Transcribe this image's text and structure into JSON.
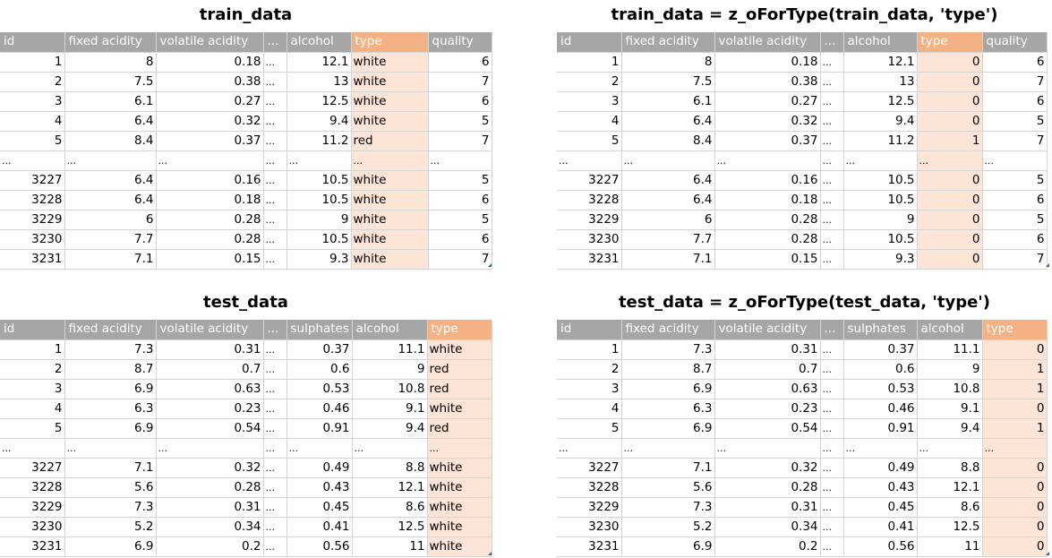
{
  "panels": [
    {
      "title": "train_data",
      "headers": [
        "id",
        "fixed acidity",
        "volatile acidity",
        "...",
        "alcohol",
        "type",
        "quality"
      ],
      "rows": [
        [
          "1",
          "8",
          "0.18",
          "...",
          "12.1",
          "white",
          "6"
        ],
        [
          "2",
          "7.5",
          "0.38",
          "...",
          "13",
          "white",
          "7"
        ],
        [
          "3",
          "6.1",
          "0.27",
          "...",
          "12.5",
          "white",
          "6"
        ],
        [
          "4",
          "6.4",
          "0.32",
          "...",
          "9.4",
          "white",
          "5"
        ],
        [
          "5",
          "8.4",
          "0.37",
          "...",
          "11.2",
          "red",
          "7"
        ],
        [
          "...",
          "...",
          "...",
          "...",
          "...",
          "...",
          "..."
        ],
        [
          "3227",
          "6.4",
          "0.16",
          "...",
          "10.5",
          "white",
          "5"
        ],
        [
          "3228",
          "6.4",
          "0.18",
          "...",
          "10.5",
          "white",
          "6"
        ],
        [
          "3229",
          "6",
          "0.28",
          "...",
          "9",
          "white",
          "5"
        ],
        [
          "3230",
          "7.7",
          "0.28",
          "...",
          "10.5",
          "white",
          "6"
        ],
        [
          "3231",
          "7.1",
          "0.15",
          "...",
          "9.3",
          "white",
          "7"
        ]
      ]
    },
    {
      "title": "train_data = z_oForType(train_data, 'type')",
      "headers": [
        "id",
        "fixed acidity",
        "volatile acidity",
        "...",
        "alcohol",
        "type",
        "quality"
      ],
      "rows": [
        [
          "1",
          "8",
          "0.18",
          "...",
          "12.1",
          "0",
          "6"
        ],
        [
          "2",
          "7.5",
          "0.38",
          "...",
          "13",
          "0",
          "7"
        ],
        [
          "3",
          "6.1",
          "0.27",
          "...",
          "12.5",
          "0",
          "6"
        ],
        [
          "4",
          "6.4",
          "0.32",
          "...",
          "9.4",
          "0",
          "5"
        ],
        [
          "5",
          "8.4",
          "0.37",
          "...",
          "11.2",
          "1",
          "7"
        ],
        [
          "...",
          "...",
          "...",
          "...",
          "...",
          "...",
          "..."
        ],
        [
          "3227",
          "6.4",
          "0.16",
          "...",
          "10.5",
          "0",
          "5"
        ],
        [
          "3228",
          "6.4",
          "0.18",
          "...",
          "10.5",
          "0",
          "6"
        ],
        [
          "3229",
          "6",
          "0.28",
          "...",
          "9",
          "0",
          "5"
        ],
        [
          "3230",
          "7.7",
          "0.28",
          "...",
          "10.5",
          "0",
          "6"
        ],
        [
          "3231",
          "7.1",
          "0.15",
          "...",
          "9.3",
          "0",
          "7"
        ]
      ]
    },
    {
      "title": "test_data",
      "headers": [
        "id",
        "fixed acidity",
        "volatile acidity",
        "...",
        "sulphates",
        "alcohol",
        "type"
      ],
      "rows": [
        [
          "1",
          "7.3",
          "0.31",
          "...",
          "0.37",
          "11.1",
          "white"
        ],
        [
          "2",
          "8.7",
          "0.7",
          "...",
          "0.6",
          "9",
          "red"
        ],
        [
          "3",
          "6.9",
          "0.63",
          "...",
          "0.53",
          "10.8",
          "red"
        ],
        [
          "4",
          "6.3",
          "0.23",
          "...",
          "0.46",
          "9.1",
          "white"
        ],
        [
          "5",
          "6.9",
          "0.54",
          "...",
          "0.91",
          "9.4",
          "red"
        ],
        [
          "...",
          "...",
          "...",
          "...",
          "...",
          "...",
          "..."
        ],
        [
          "3227",
          "7.1",
          "0.32",
          "...",
          "0.49",
          "8.8",
          "white"
        ],
        [
          "3228",
          "5.6",
          "0.28",
          "...",
          "0.43",
          "12.1",
          "white"
        ],
        [
          "3229",
          "7.3",
          "0.31",
          "...",
          "0.45",
          "8.6",
          "white"
        ],
        [
          "3230",
          "5.2",
          "0.34",
          "...",
          "0.41",
          "12.5",
          "white"
        ],
        [
          "3231",
          "6.9",
          "0.2",
          "...",
          "0.56",
          "11",
          "white"
        ]
      ]
    },
    {
      "title": "test_data = z_oForType(test_data, 'type')",
      "headers": [
        "id",
        "fixed acidity",
        "volatile acidity",
        "...",
        "sulphates",
        "alcohol",
        "type"
      ],
      "rows": [
        [
          "1",
          "7.3",
          "0.31",
          "...",
          "0.37",
          "11.1",
          "0"
        ],
        [
          "2",
          "8.7",
          "0.7",
          "...",
          "0.6",
          "9",
          "1"
        ],
        [
          "3",
          "6.9",
          "0.63",
          "...",
          "0.53",
          "10.8",
          "1"
        ],
        [
          "4",
          "6.3",
          "0.23",
          "...",
          "0.46",
          "9.1",
          "0"
        ],
        [
          "5",
          "6.9",
          "0.54",
          "...",
          "0.91",
          "9.4",
          "1"
        ],
        [
          "...",
          "...",
          "...",
          "...",
          "...",
          "...",
          "..."
        ],
        [
          "3227",
          "7.1",
          "0.32",
          "...",
          "0.49",
          "8.8",
          "0"
        ],
        [
          "3228",
          "5.6",
          "0.28",
          "...",
          "0.43",
          "12.1",
          "0"
        ],
        [
          "3229",
          "7.3",
          "0.31",
          "...",
          "0.45",
          "8.6",
          "0"
        ],
        [
          "3230",
          "5.2",
          "0.34",
          "...",
          "0.41",
          "12.5",
          "0"
        ],
        [
          "3231",
          "6.9",
          "0.2",
          "...",
          "0.56",
          "11",
          "0"
        ]
      ]
    }
  ],
  "colors": {
    "header_bg": "#a6a6a6",
    "highlight_header": "#f4b183",
    "highlight_cell": "#fce4d6",
    "grid": "#d4d4d4"
  }
}
